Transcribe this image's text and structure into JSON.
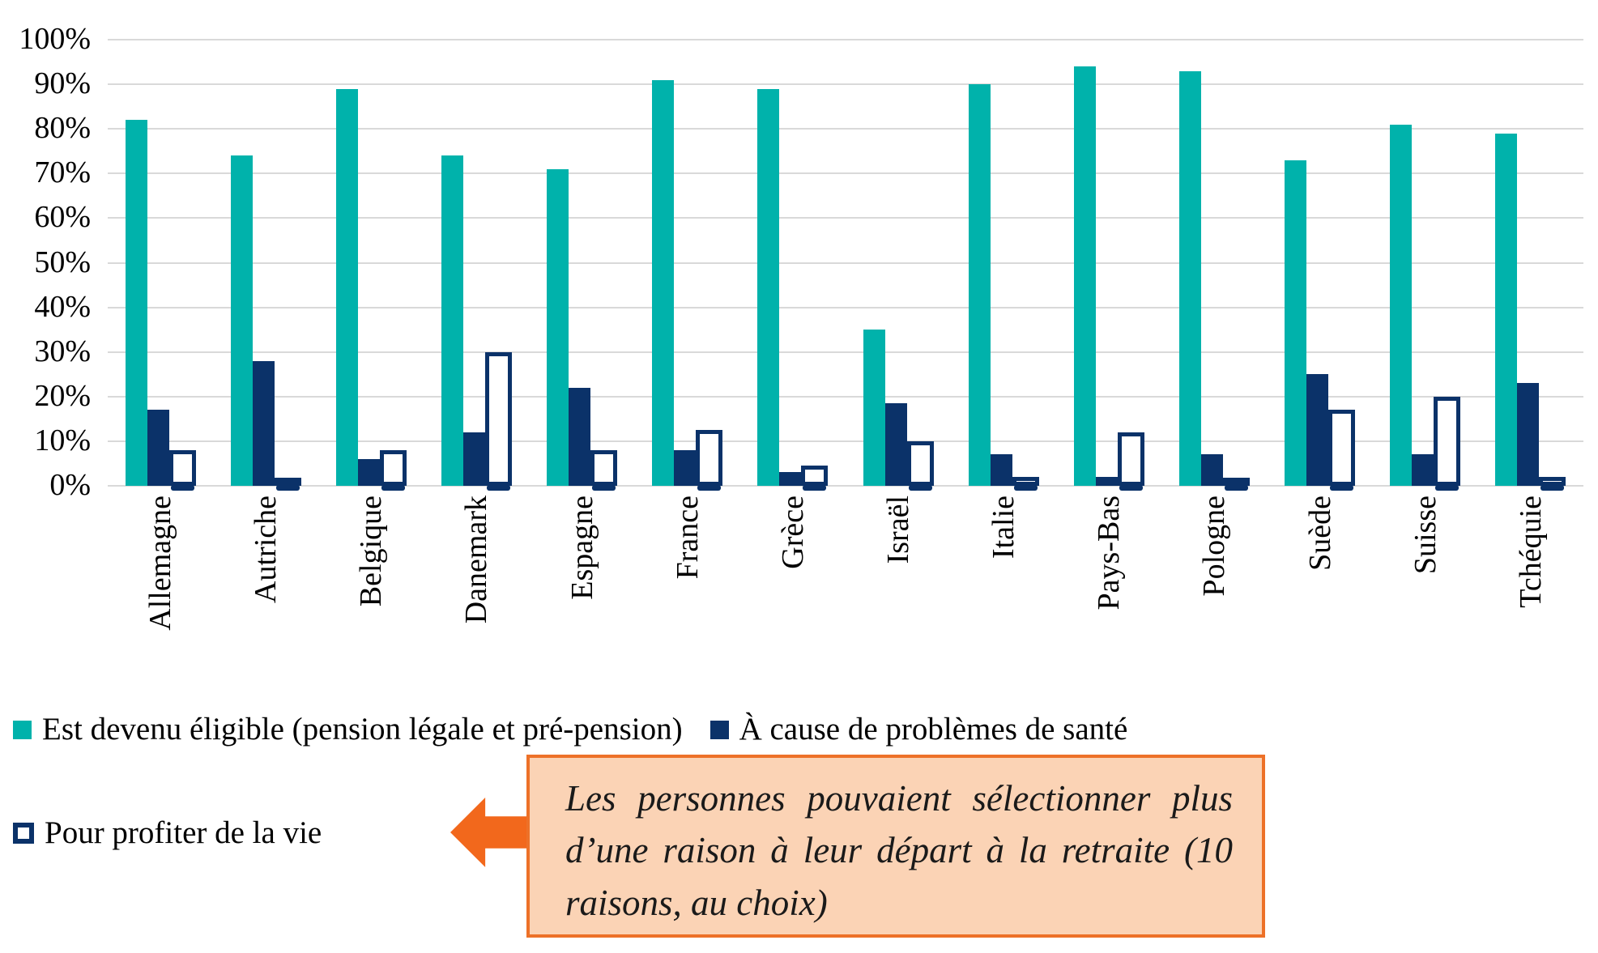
{
  "chart_data": {
    "type": "bar",
    "title": "",
    "categories": [
      "Allemagne",
      "Autriche",
      "Belgique",
      "Danemark",
      "Espagne",
      "France",
      "Grèce",
      "Israël",
      "Italie",
      "Pays-Bas",
      "Pologne",
      "Suède",
      "Suisse",
      "Tchéquie"
    ],
    "series": [
      {
        "name": "Est devenu éligible (pension légale et pré-pension)",
        "style": "solid",
        "color": "#00B2AB",
        "values": [
          82,
          74,
          89,
          74,
          71,
          91,
          89,
          35,
          90,
          94,
          93,
          73,
          81,
          79
        ]
      },
      {
        "name": "À cause de problèmes de santé",
        "style": "solid",
        "color": "#0B3269",
        "values": [
          17,
          28,
          6,
          12,
          22,
          8,
          3,
          18.5,
          7,
          2,
          7,
          25,
          7,
          23
        ]
      },
      {
        "name": "Pour profiter de la vie",
        "style": "outlined",
        "color": "#FFFFFF",
        "border_color": "#0B3269",
        "values": [
          8,
          1,
          8,
          30,
          8,
          12.5,
          4.5,
          10,
          2,
          12,
          0.5,
          17,
          20,
          2
        ]
      }
    ],
    "y_axis": {
      "min": 0,
      "max": 100,
      "step": 10,
      "tick_labels": [
        "0%",
        "10%",
        "20%",
        "30%",
        "40%",
        "50%",
        "60%",
        "70%",
        "80%",
        "90%",
        "100%"
      ]
    },
    "grid": true,
    "grid_color": "#D9D9D9",
    "legend_position": "bottom",
    "xlabel": "",
    "ylabel": ""
  },
  "annotation": {
    "text": "Les personnes pouvaient sélectionner plus d’une raison à leur départ à la retraite (10 raisons, au choix)",
    "fill_color": "#FBD3B5",
    "border_color": "#ED7128",
    "arrow_color": "#F2681C"
  }
}
